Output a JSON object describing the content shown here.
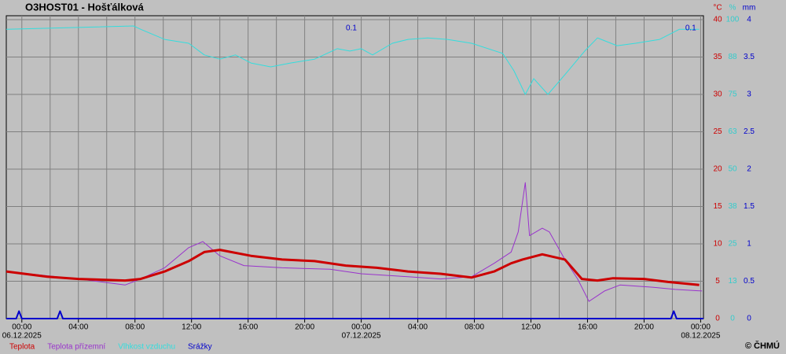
{
  "chart_data": {
    "type": "line",
    "title": "O3HOST01 - Hošťálková",
    "credit": "© ČHMÚ",
    "xlim": [
      -1.1,
      48.2
    ],
    "xticks": [
      {
        "value": 0,
        "label": "00:00"
      },
      {
        "value": 4,
        "label": "04:00"
      },
      {
        "value": 8,
        "label": "08:00"
      },
      {
        "value": 12,
        "label": "12:00"
      },
      {
        "value": 16,
        "label": "16:00"
      },
      {
        "value": 20,
        "label": "20:00"
      },
      {
        "value": 24,
        "label": "00:00"
      },
      {
        "value": 28,
        "label": "04:00"
      },
      {
        "value": 32,
        "label": "08:00"
      },
      {
        "value": 36,
        "label": "12:00"
      },
      {
        "value": 40,
        "label": "16:00"
      },
      {
        "value": 44,
        "label": "20:00"
      },
      {
        "value": 48,
        "label": "00:00"
      }
    ],
    "xminor": [
      2,
      6,
      10,
      14,
      18,
      22,
      26,
      30,
      34,
      38,
      42,
      46
    ],
    "date_labels": [
      {
        "value": 0,
        "label": "06.12.2025"
      },
      {
        "value": 24,
        "label": "07.12.2025"
      },
      {
        "value": 48,
        "label": "08.12.2025"
      }
    ],
    "y_unit": "°C",
    "y2_unit": "%",
    "y3_unit": "mm",
    "y_color": "#cc0000",
    "y2_color": "#33cccc",
    "y3_color": "#0000cc",
    "ylim": [
      0,
      40
    ],
    "yticks": [
      0,
      5,
      10,
      15,
      20,
      25,
      30,
      35,
      40
    ],
    "y2lim": [
      0,
      100
    ],
    "y2ticks": [
      0,
      {
        "value": 12.5,
        "label": "13"
      },
      25,
      {
        "value": 37.5,
        "label": "38"
      },
      50,
      {
        "value": 62.5,
        "label": "63"
      },
      75,
      {
        "value": 87.5,
        "label": "88"
      },
      100
    ],
    "y3lim": [
      0,
      4
    ],
    "y3ticks": [
      0,
      0.5,
      1,
      1.5,
      2,
      2.5,
      3,
      3.5,
      4
    ],
    "grid": true,
    "series": [
      {
        "name": "Teplota přízemní",
        "color": "#9933cc",
        "axis": "y",
        "width": 1,
        "x": [
          -1.1,
          4.0,
          7.3,
          8.4,
          10.1,
          11.8,
          12.8,
          14.0,
          15.7,
          18.4,
          21.8,
          24.0,
          27.3,
          29.6,
          31.8,
          33.4,
          34.6,
          35.1,
          35.6,
          35.9,
          36.8,
          37.3,
          38.4,
          39.3,
          40.1,
          41.2,
          42.3,
          44.6,
          46.2,
          48.1
        ],
        "values": [
          6.3,
          5.3,
          4.5,
          5.3,
          6.8,
          9.5,
          10.3,
          8.4,
          7.1,
          6.8,
          6.6,
          6.0,
          5.6,
          5.3,
          5.6,
          7.4,
          8.9,
          11.6,
          18.2,
          11.1,
          12.1,
          11.6,
          7.9,
          5.3,
          2.3,
          3.7,
          4.5,
          4.2,
          3.9,
          3.7
        ]
      },
      {
        "name": "Teplota",
        "color": "#cc0000",
        "axis": "y",
        "width": 3,
        "x": [
          -1.1,
          1.8,
          4.0,
          7.3,
          8.4,
          10.1,
          11.8,
          12.9,
          14.0,
          16.2,
          18.4,
          20.7,
          22.9,
          25.1,
          27.3,
          29.6,
          31.8,
          33.4,
          34.6,
          35.4,
          36.8,
          38.4,
          39.6,
          40.7,
          41.8,
          44.0,
          45.7,
          47.9
        ],
        "values": [
          6.3,
          5.6,
          5.3,
          5.1,
          5.3,
          6.3,
          7.7,
          8.9,
          9.2,
          8.4,
          7.9,
          7.7,
          7.1,
          6.8,
          6.3,
          6.0,
          5.5,
          6.3,
          7.4,
          7.9,
          8.6,
          7.9,
          5.3,
          5.1,
          5.4,
          5.3,
          4.9,
          4.5
        ]
      },
      {
        "name": "Vlhkost vzduchu",
        "color": "#33dddd",
        "axis": "y2",
        "width": 1,
        "x": [
          -1.1,
          7.9,
          8.4,
          10.1,
          11.8,
          12.9,
          14.0,
          15.1,
          16.2,
          17.6,
          19.0,
          20.7,
          22.3,
          23.2,
          24.0,
          24.8,
          26.2,
          27.3,
          28.7,
          30.1,
          31.8,
          34.0,
          34.8,
          35.6,
          36.2,
          37.2,
          38.4,
          39.8,
          40.7,
          42.1,
          43.4,
          45.1,
          46.5,
          47.9
        ],
        "values": [
          96.8,
          97.9,
          96.8,
          93.4,
          92.1,
          88.2,
          86.8,
          88.2,
          85.5,
          84.2,
          85.5,
          86.8,
          90.3,
          89.5,
          90.3,
          88.2,
          92.1,
          93.4,
          93.9,
          93.4,
          92.1,
          88.7,
          82.9,
          75.0,
          80.3,
          75.0,
          81.6,
          89.5,
          93.9,
          91.3,
          92.1,
          93.4,
          96.8,
          96.8
        ]
      },
      {
        "name": "Srážky",
        "color": "#0000cc",
        "axis": "y3",
        "width": 2,
        "x": [
          -1.1,
          -0.4,
          -0.2,
          0,
          2.5,
          2.7,
          2.9,
          45.9,
          46.1,
          46.3,
          48.2
        ],
        "values": [
          0,
          0,
          0.1,
          0,
          0,
          0.1,
          0,
          0,
          0.1,
          0,
          0
        ]
      }
    ],
    "annotations": [
      {
        "text": "0.1",
        "x": 23.3
      },
      {
        "text": "0.1",
        "x": 47.3
      }
    ]
  }
}
